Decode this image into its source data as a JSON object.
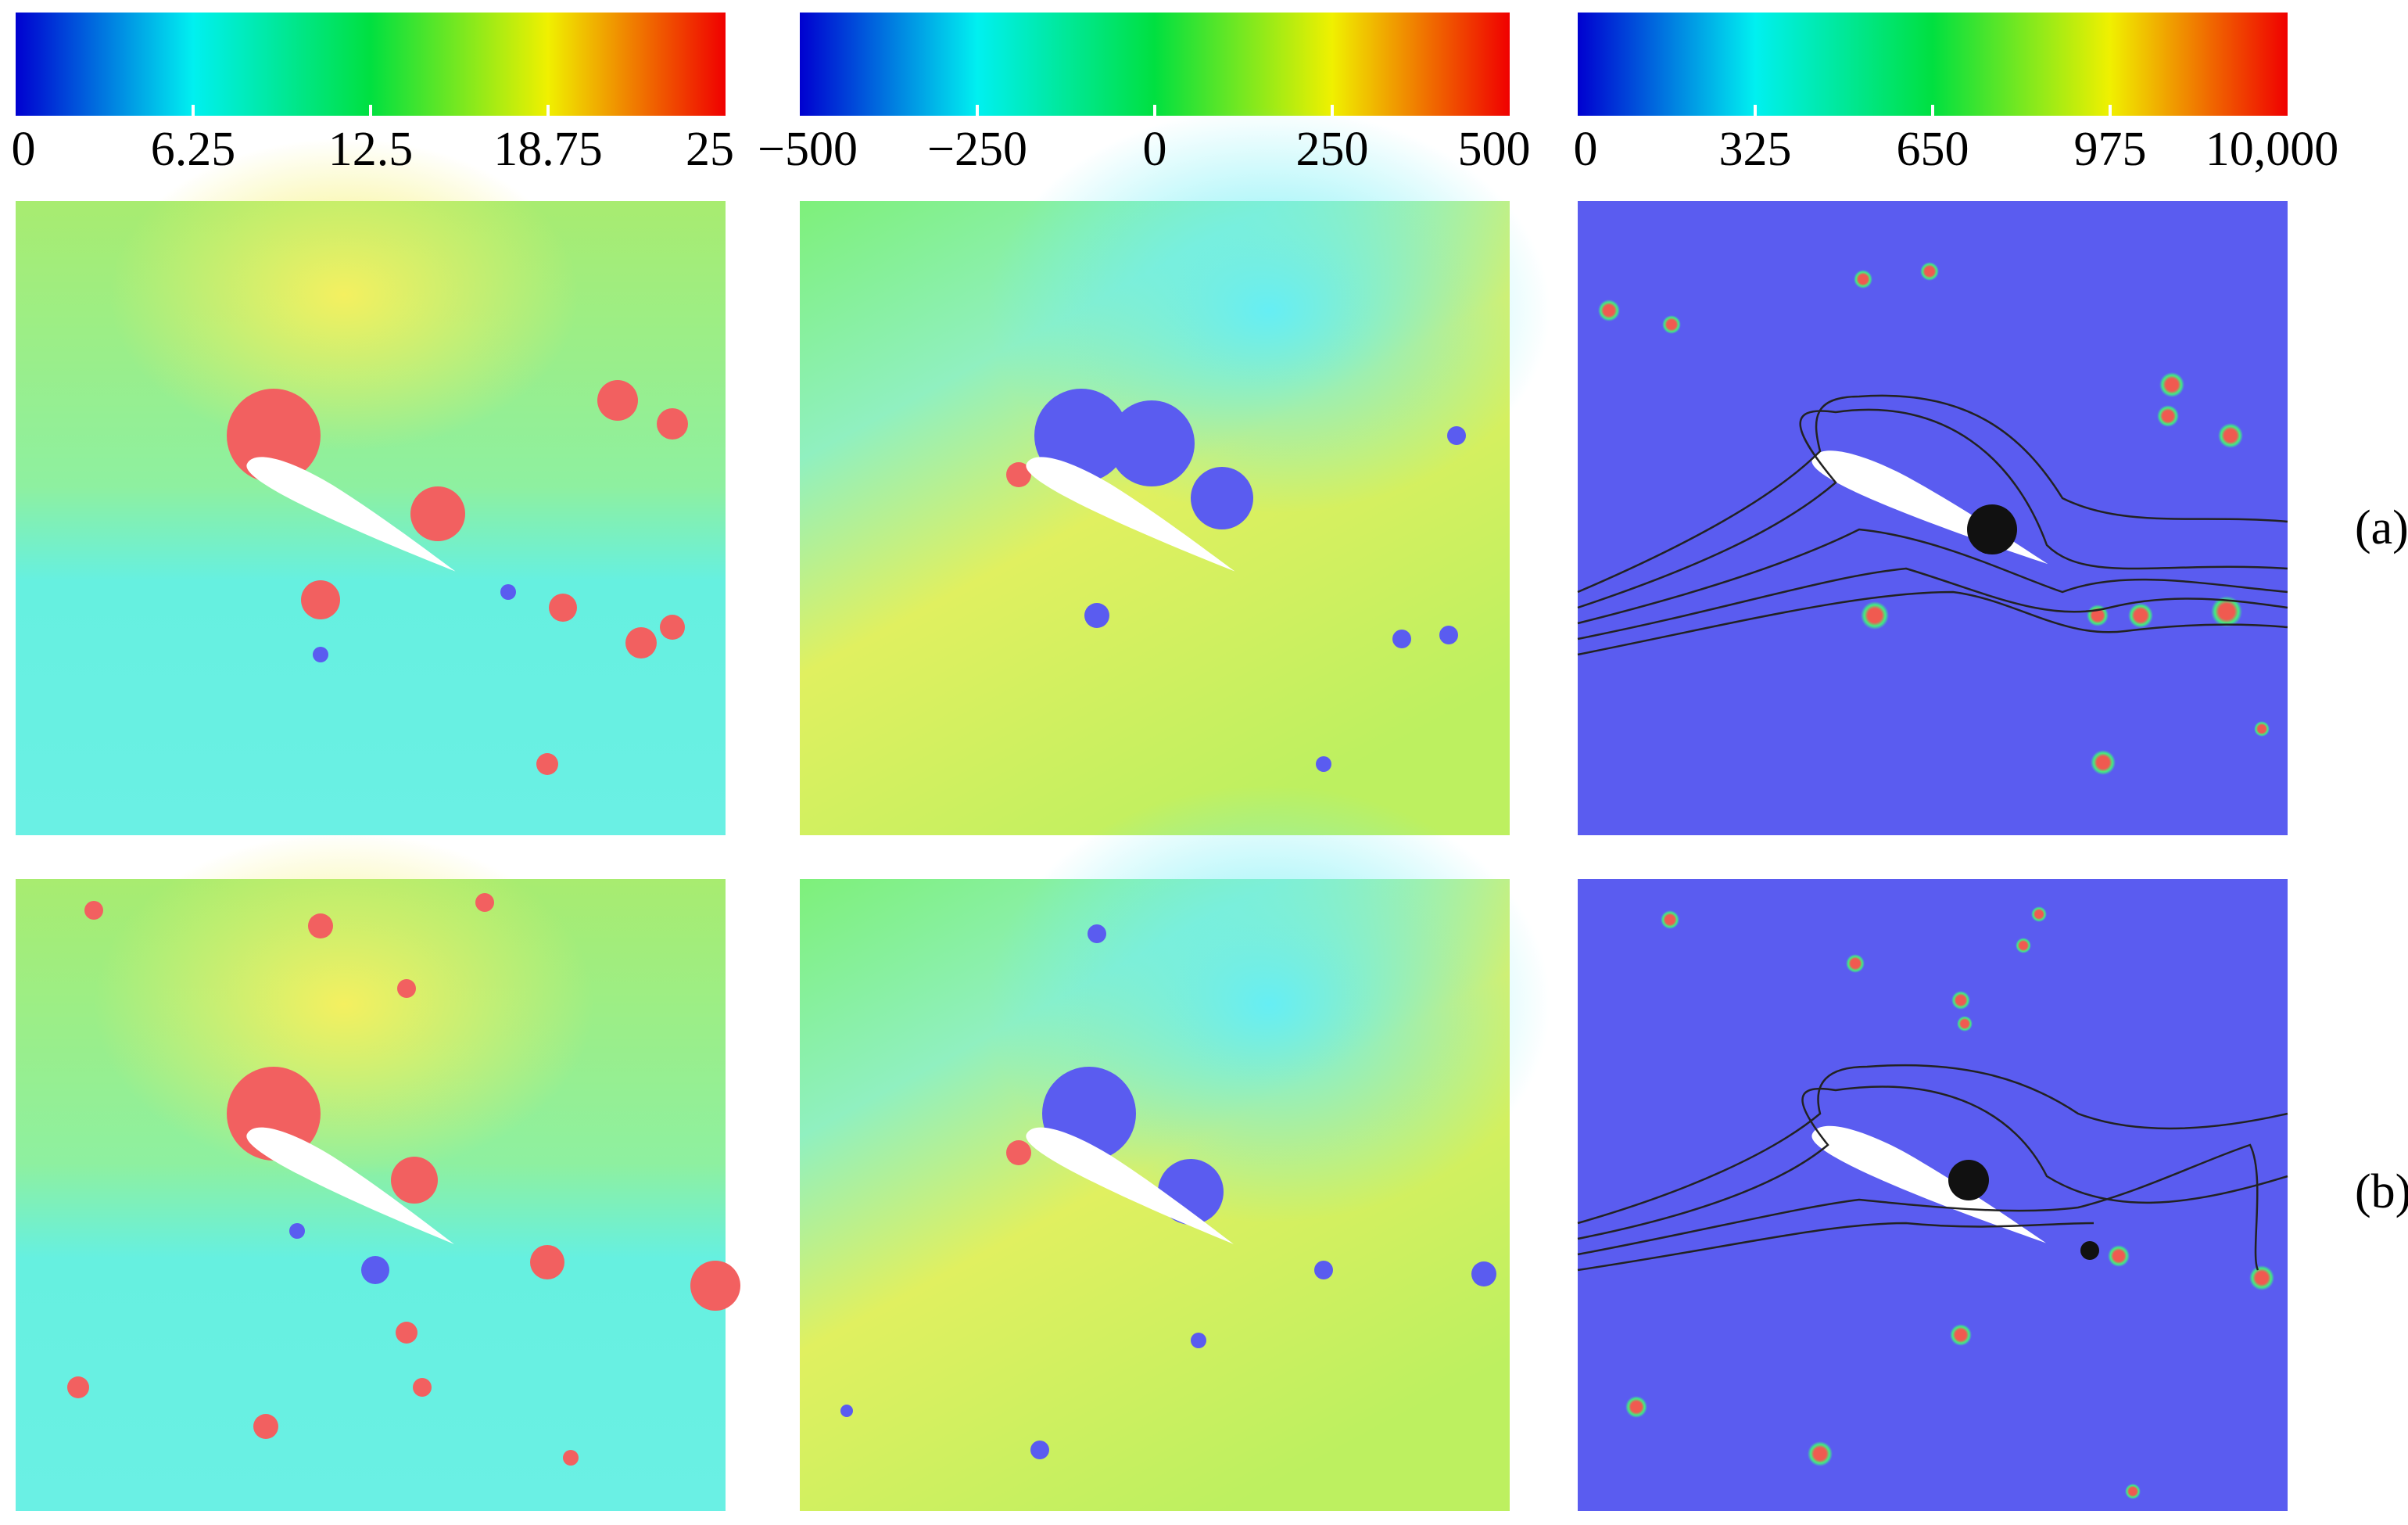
{
  "colorbars": [
    {
      "ticks": [
        "0",
        "6.25",
        "12.5",
        "18.75",
        "25"
      ]
    },
    {
      "ticks": [
        "−500",
        "−250",
        "0",
        "250",
        "500"
      ]
    },
    {
      "ticks": [
        "0",
        "325",
        "650",
        "975",
        "10,000"
      ]
    }
  ],
  "rows": [
    {
      "label": "(a)"
    },
    {
      "label": "(b)"
    }
  ]
}
